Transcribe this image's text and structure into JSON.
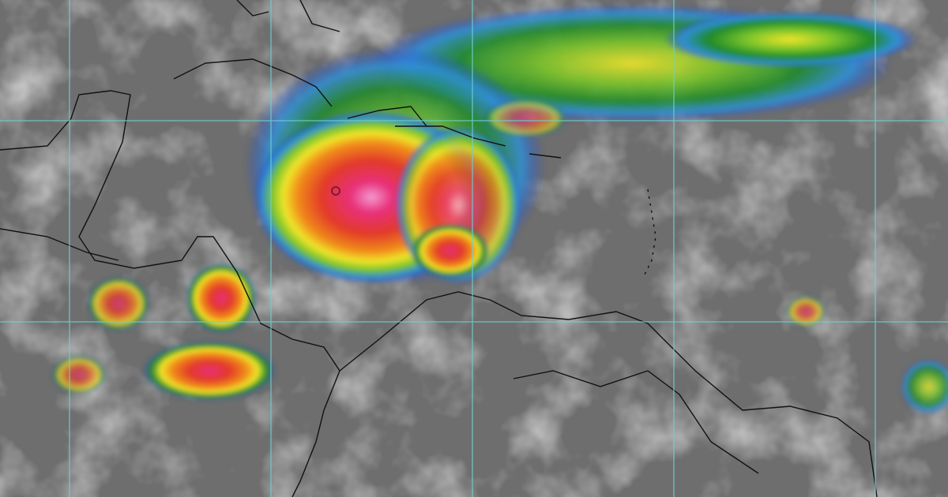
{
  "map": {
    "grid_color": "#6fd0d0",
    "coastline_color": "#111111",
    "background_color": "#6e6e6e",
    "cloud_color": "#d8d8d8",
    "intensity_palette": [
      "#1e3fd0",
      "#2f8fd8",
      "#1f8a2a",
      "#7bc42a",
      "#f0e52a",
      "#f08a1a",
      "#e23a2a",
      "#e8307a",
      "#f59ad0"
    ]
  }
}
